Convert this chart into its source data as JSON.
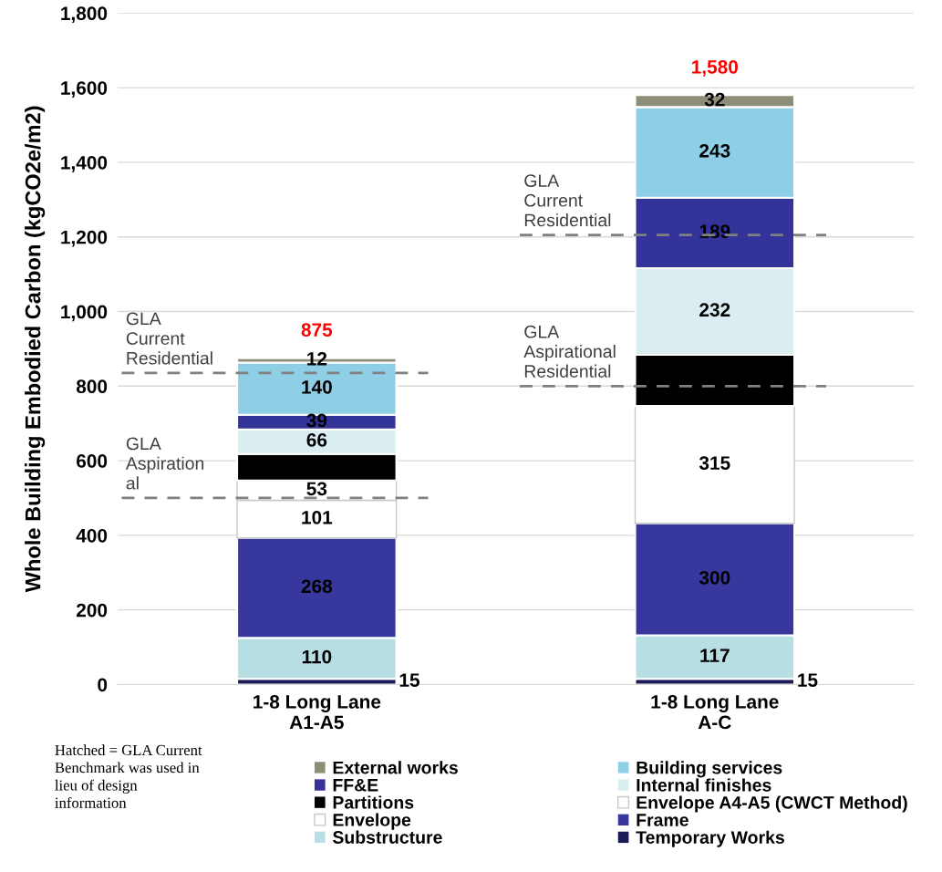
{
  "chart_data": {
    "type": "bar",
    "stacked": true,
    "ylabel": "Whole Building Embodied Carbon (kgCO2e/m2)",
    "categories": [
      "1-8 Long Lane\nA1-A5",
      "1-8 Long Lane\nA-C"
    ],
    "series": [
      {
        "name": "Temporary Works",
        "color": "#1b1b55",
        "values": [
          15,
          15
        ],
        "value_labels": [
          "15",
          "15"
        ]
      },
      {
        "name": "Substructure",
        "color": "#b7dfe3",
        "values": [
          110,
          117
        ],
        "value_labels": [
          "110",
          "117"
        ]
      },
      {
        "name": "Frame",
        "color": "#38379e",
        "values": [
          268,
          300
        ],
        "value_labels": [
          "268",
          "300"
        ]
      },
      {
        "name": "Envelope",
        "color": "#ffffff",
        "values": [
          101,
          315
        ],
        "value_labels": [
          "101",
          "315"
        ]
      },
      {
        "name": "Envelope A4-A5 (CWCT Method)",
        "color": "#ffffff",
        "values": [
          53,
          null
        ],
        "value_labels": [
          "53",
          null
        ]
      },
      {
        "name": "Partitions",
        "color": "#000000",
        "values": [
          71,
          137
        ],
        "value_labels": [
          null,
          null
        ]
      },
      {
        "name": "Internal finishes",
        "color": "#daeef1",
        "values": [
          66,
          232
        ],
        "value_labels": [
          "66",
          "232"
        ]
      },
      {
        "name": "FF&E",
        "color": "#333399",
        "values": [
          39,
          189
        ],
        "value_labels": [
          "39",
          "189"
        ]
      },
      {
        "name": "Building services",
        "color": "#8fcfe6",
        "values": [
          140,
          243
        ],
        "value_labels": [
          "140",
          "243"
        ]
      },
      {
        "name": "External works",
        "color": "#8e8e78",
        "values": [
          12,
          32
        ],
        "value_labels": [
          "12",
          "32"
        ]
      }
    ],
    "totals": [
      "875",
      "1,580"
    ],
    "ylim": [
      0,
      1800
    ],
    "yticks": [
      {
        "value": 0,
        "label": "0"
      },
      {
        "value": 200,
        "label": "200"
      },
      {
        "value": 400,
        "label": "400"
      },
      {
        "value": 600,
        "label": "600"
      },
      {
        "value": 800,
        "label": "800"
      },
      {
        "value": 1000,
        "label": "1,000"
      },
      {
        "value": 1200,
        "label": "1,200"
      },
      {
        "value": 1400,
        "label": "1,400"
      },
      {
        "value": 1600,
        "label": "1,600"
      },
      {
        "value": 1800,
        "label": "1,800"
      }
    ],
    "grid": "y",
    "legend": "bottom",
    "ref_lines": [
      {
        "axis": "y",
        "value": 835,
        "label": "GLA\nCurrent\nResidential",
        "color": "#808080",
        "line_style": "dashed"
      },
      {
        "axis": "y",
        "value": 500,
        "label": "GLA\nAspiration\nal",
        "color": "#808080",
        "line_style": "dashed"
      },
      {
        "axis": "y",
        "value": 1205,
        "label": "GLA\nCurrent\nResidential",
        "color": "#808080",
        "line_style": "dashed"
      },
      {
        "axis": "y",
        "value": 800,
        "label": "GLA\nAspirational\nResidential",
        "color": "#808080",
        "line_style": "dashed"
      }
    ],
    "annotations": [
      "Hatched = GLA Current\nBenchmark was used in\nlieu of design\ninformation"
    ]
  }
}
